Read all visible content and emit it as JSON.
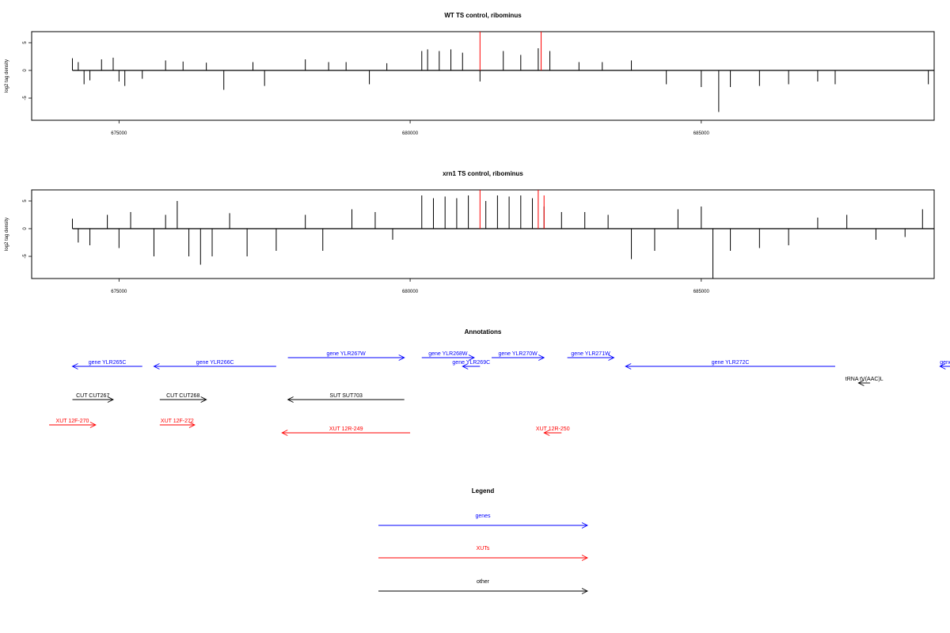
{
  "chart_data": [
    {
      "type": "bar",
      "title": "WT TS control, ribominus",
      "ylabel": "log2 tag density",
      "xlabel": "",
      "xlim": [
        673500,
        689000
      ],
      "ylim": [
        -9,
        7
      ],
      "x_ticks": [
        "675000",
        "680000",
        "685000"
      ],
      "y_ticks": [
        "-5",
        "0",
        "5"
      ],
      "series": [
        {
          "color": "#000000",
          "x": [
            674200,
            674300,
            674400,
            674500,
            674700,
            674900,
            675000,
            675100,
            675400,
            675800,
            676100,
            676500,
            676800,
            677300,
            677500,
            678200,
            678600,
            678900,
            679300,
            679600,
            680200,
            680300,
            680500,
            680700,
            680900,
            681200,
            681600,
            681900,
            682200,
            682400,
            682900,
            683300,
            683800,
            684400,
            685000,
            685300,
            685500,
            686000,
            686500,
            687000,
            687300,
            688900,
            689000
          ],
          "y": [
            2.2,
            1.5,
            -2.5,
            -1.8,
            2.0,
            2.3,
            -2.0,
            -2.8,
            -1.5,
            1.8,
            1.6,
            1.4,
            -3.5,
            1.5,
            -2.8,
            2.0,
            1.5,
            1.5,
            -2.5,
            1.3,
            3.5,
            3.8,
            3.5,
            3.8,
            3.2,
            -2.0,
            3.5,
            2.8,
            4.0,
            3.5,
            1.5,
            1.5,
            1.8,
            -2.5,
            -3.0,
            -7.5,
            -3.0,
            -2.8,
            -2.5,
            -2.0,
            -2.5,
            -2.5,
            -2.0
          ]
        },
        {
          "color": "#ff0000",
          "x": [
            681200,
            682250
          ],
          "y": [
            7.0,
            7.0
          ]
        }
      ]
    },
    {
      "type": "bar",
      "title": "xrn1 TS control, ribominus",
      "ylabel": "log2 tag density",
      "xlabel": "",
      "xlim": [
        673500,
        689000
      ],
      "ylim": [
        -9,
        7
      ],
      "x_ticks": [
        "675000",
        "680000",
        "685000"
      ],
      "y_ticks": [
        "-5",
        "0",
        "5"
      ],
      "series": [
        {
          "color": "#000000",
          "x": [
            674200,
            674300,
            674500,
            674800,
            675000,
            675200,
            675600,
            675800,
            676000,
            676200,
            676400,
            676600,
            676900,
            677200,
            677700,
            678200,
            678500,
            679000,
            679400,
            679700,
            680200,
            680400,
            680600,
            680800,
            681000,
            681300,
            681500,
            681700,
            681900,
            682100,
            682300,
            682600,
            683000,
            683400,
            683800,
            684200,
            684600,
            685000,
            685200,
            685500,
            686000,
            686500,
            687000,
            687500,
            688000,
            688500,
            688800,
            689000
          ],
          "y": [
            1.8,
            -2.5,
            -3.0,
            2.5,
            -3.5,
            3.0,
            -5.0,
            2.5,
            5.0,
            -5.0,
            -6.5,
            -5.0,
            2.8,
            -5.0,
            -4.0,
            2.5,
            -4.0,
            3.5,
            3.0,
            -2.0,
            6.0,
            5.5,
            5.8,
            5.5,
            6.0,
            5.0,
            6.0,
            5.8,
            6.0,
            5.5,
            4.0,
            3.0,
            3.0,
            2.5,
            -5.5,
            -4.0,
            3.5,
            4.0,
            -9.0,
            -4.0,
            -3.5,
            -3.0,
            2.0,
            2.5,
            -2.0,
            -1.5,
            3.5,
            -3.5
          ]
        },
        {
          "color": "#ff0000",
          "x": [
            681200,
            682200,
            682300
          ],
          "y": [
            7.0,
            7.0,
            6.0
          ]
        }
      ]
    }
  ],
  "annotations": {
    "title": "Annotations",
    "tracks": [
      {
        "label": "gene YLR265C",
        "color": "#0000ff",
        "x1": 675400,
        "x2": 674200,
        "dir": "left",
        "row": 1
      },
      {
        "label": "gene YLR266C",
        "color": "#0000ff",
        "x1": 677700,
        "x2": 675600,
        "dir": "left",
        "row": 1
      },
      {
        "label": "gene YLR267W",
        "color": "#0000ff",
        "x1": 677900,
        "x2": 679900,
        "dir": "right",
        "row": 0
      },
      {
        "label": "gene YLR268W",
        "color": "#0000ff",
        "x1": 680200,
        "x2": 681100,
        "dir": "right",
        "row": 0
      },
      {
        "label": "gene YLR269C",
        "color": "#0000ff",
        "x1": 681200,
        "x2": 680900,
        "dir": "left",
        "row": 1
      },
      {
        "label": "gene YLR270W",
        "color": "#0000ff",
        "x1": 681400,
        "x2": 682300,
        "dir": "right",
        "row": 0
      },
      {
        "label": "gene YLR271W",
        "color": "#0000ff",
        "x1": 682700,
        "x2": 683500,
        "dir": "right",
        "row": 0
      },
      {
        "label": "gene YLR272C",
        "color": "#0000ff",
        "x1": 687300,
        "x2": 683700,
        "dir": "left",
        "row": 1
      },
      {
        "label": "gene",
        "color": "#0000ff",
        "x1": 689900,
        "x2": 689100,
        "dir": "left",
        "row": 1
      },
      {
        "label": "tRNA tV(AAC)L",
        "color": "#000000",
        "x1": 687900,
        "x2": 687700,
        "dir": "left",
        "row": 2
      },
      {
        "label": "CUT CUT267",
        "color": "#000000",
        "x1": 674200,
        "x2": 674900,
        "dir": "right",
        "row": 3
      },
      {
        "label": "CUT CUT268",
        "color": "#000000",
        "x1": 675700,
        "x2": 676500,
        "dir": "right",
        "row": 3
      },
      {
        "label": "SUT SUT703",
        "color": "#000000",
        "x1": 679900,
        "x2": 677900,
        "dir": "left",
        "row": 3
      },
      {
        "label": "XUT 12F-270",
        "color": "#ff0000",
        "x1": 673800,
        "x2": 674600,
        "dir": "right",
        "row": 4
      },
      {
        "label": "XUT 12F-272",
        "color": "#ff0000",
        "x1": 675700,
        "x2": 676300,
        "dir": "right",
        "row": 4
      },
      {
        "label": "XUT 12R-249",
        "color": "#ff0000",
        "x1": 680000,
        "x2": 677800,
        "dir": "left",
        "row": 5
      },
      {
        "label": "XUT 12R-250",
        "color": "#ff0000",
        "x1": 682600,
        "x2": 682300,
        "dir": "left",
        "row": 5
      }
    ]
  },
  "legend": {
    "title": "Legend",
    "items": [
      {
        "label": "genes",
        "color": "#0000ff"
      },
      {
        "label": "XUTs",
        "color": "#ff0000"
      },
      {
        "label": "other",
        "color": "#000000"
      }
    ]
  }
}
